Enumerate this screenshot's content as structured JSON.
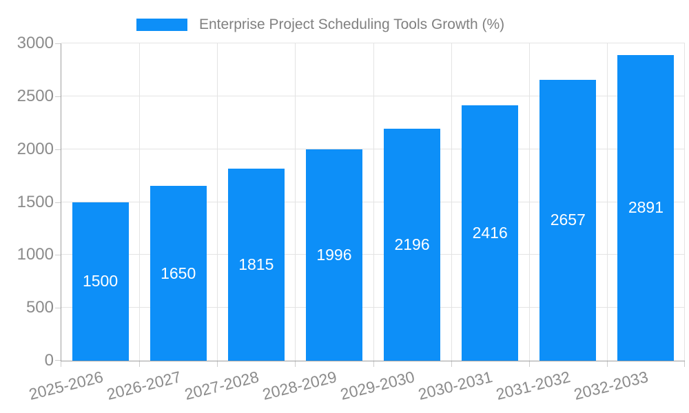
{
  "legend": {
    "label": "Enterprise Project Scheduling Tools Growth (%)"
  },
  "chart_data": {
    "type": "bar",
    "title": "Enterprise Project Scheduling Tools Growth (%)",
    "categories": [
      "2025-2026",
      "2026-2027",
      "2027-2028",
      "2028-2029",
      "2029-2030",
      "2030-2031",
      "2031-2032",
      "2032-2033"
    ],
    "values": [
      1500,
      1650,
      1815,
      1996,
      2196,
      2416,
      2657,
      2891
    ],
    "xlabel": "",
    "ylabel": "",
    "ylim": [
      0,
      3000
    ],
    "yticks": [
      0,
      500,
      1000,
      1500,
      2000,
      2500,
      3000
    ],
    "grid": true,
    "legend_position": "top",
    "value_labels": "inside-center",
    "bar_color": "#0d8ff8",
    "value_label_color": "#ffffff",
    "axis_label_color": "#8b8b8b",
    "grid_color": "#e3e3e3",
    "tick_color": "#cccccc",
    "axis_line_color": "#9e9e9e",
    "legend_text_color": "#808080",
    "background_color": "#ffffff"
  }
}
